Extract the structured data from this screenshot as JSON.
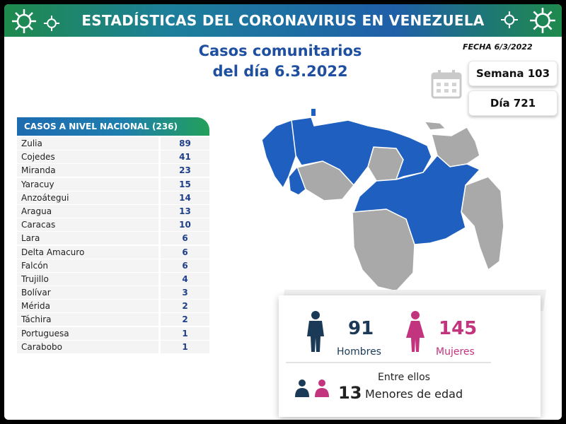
{
  "banner": {
    "title": "ESTADÍSTICAS DEL CORONAVIRUS EN VENEZUELA"
  },
  "subtitle": {
    "line1": "Casos comunitarios",
    "line2": "del día 6.3.2022"
  },
  "fecha": "FECHA 6/3/2022",
  "semana": "Semana 103",
  "dia": "Día 721",
  "table": {
    "header": "CASOS A NIVEL NACIONAL  (236)",
    "rows": [
      {
        "name": "Zulia",
        "value": "89"
      },
      {
        "name": "Cojedes",
        "value": "41"
      },
      {
        "name": "Miranda",
        "value": "23"
      },
      {
        "name": "Yaracuy",
        "value": "15"
      },
      {
        "name": "Anzoátegui",
        "value": "14"
      },
      {
        "name": "Aragua",
        "value": "13"
      },
      {
        "name": "Caracas",
        "value": "10"
      },
      {
        "name": "Lara",
        "value": "6"
      },
      {
        "name": "Delta Amacuro",
        "value": "6"
      },
      {
        "name": "Falcón",
        "value": "6"
      },
      {
        "name": "Trujillo",
        "value": "4"
      },
      {
        "name": "Bolívar",
        "value": "3"
      },
      {
        "name": "Mérida",
        "value": "2"
      },
      {
        "name": "Táchira",
        "value": "2"
      },
      {
        "name": "Portuguesa",
        "value": "1"
      },
      {
        "name": "Carabobo",
        "value": "1"
      }
    ]
  },
  "stats": {
    "hombres_value": "91",
    "hombres_label": "Hombres",
    "mujeres_value": "145",
    "mujeres_label": "Mujeres",
    "entre_ellos": "Entre ellos",
    "menores_value": "13",
    "menores_label": "Menores de edad"
  },
  "colors": {
    "brand_blue": "#1f4fa0",
    "map_blue": "#1f5fbf",
    "map_gray": "#a9a9a9",
    "male": "#1b3a57",
    "female": "#c2347e"
  },
  "icons": [
    "virus-icon",
    "calendar-icon",
    "man-icon",
    "woman-icon",
    "children-icon"
  ]
}
